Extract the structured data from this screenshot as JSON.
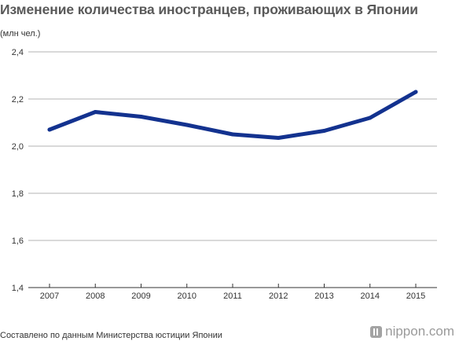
{
  "header": {
    "title": "Изменение количества иностранцев, проживающих в Японии",
    "unit": "(млн чел.)"
  },
  "footer": {
    "source": "Составлено по данным Министерства юстиции Японии",
    "brand": "nippon.com",
    "brand_icon": "nippon-logo-icon"
  },
  "colors": {
    "line": "#13328f",
    "grid": "#b3b3b3",
    "axis": "#333333"
  },
  "chart_data": {
    "type": "line",
    "title": "Изменение количества иностранцев, проживающих в Японии",
    "ylabel": "(млн чел.)",
    "xlabel": "",
    "x": [
      "2007",
      "2008",
      "2009",
      "2010",
      "2011",
      "2012",
      "2013",
      "2014",
      "2015"
    ],
    "series": [
      {
        "values": [
          2.07,
          2.145,
          2.125,
          2.09,
          2.05,
          2.035,
          2.065,
          2.12,
          2.23
        ]
      }
    ],
    "ylim": [
      1.4,
      2.4
    ],
    "yticks": [
      1.4,
      1.6,
      1.8,
      2.0,
      2.2,
      2.4
    ],
    "ytick_labels": [
      "1,4",
      "1,6",
      "1,8",
      "2,0",
      "2,2",
      "2,4"
    ],
    "grid": true,
    "legend": "none"
  }
}
